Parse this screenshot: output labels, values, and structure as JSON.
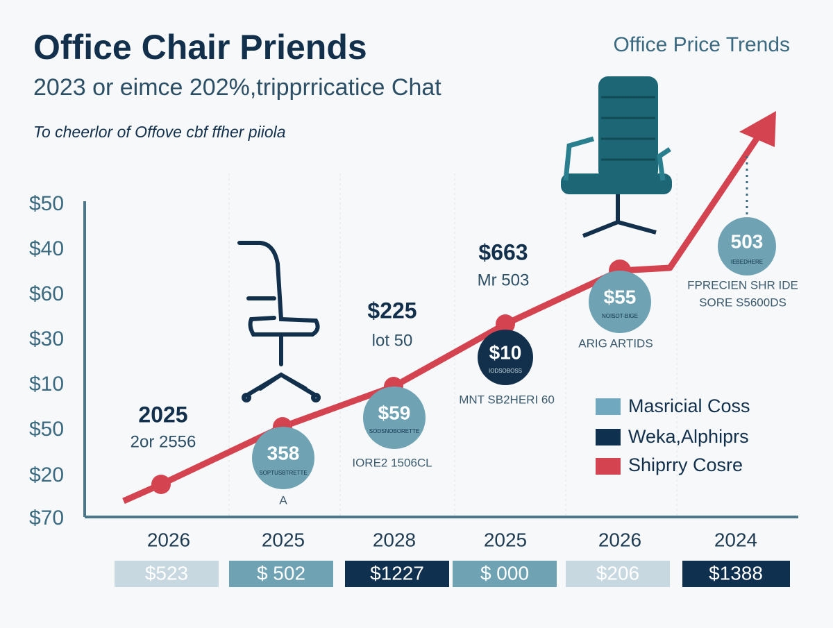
{
  "header": {
    "title": "Office Chair Priends",
    "subtitle": "2023 or eimce 202%,tripprricatice Chat",
    "tagline": "To cheerlor of Offove cbf ffher piiola",
    "corner": "Office Price Trends"
  },
  "axis": {
    "y_labels": [
      "$50",
      "$40",
      "$60",
      "$30",
      "$10",
      "$50",
      "$20",
      "$70"
    ],
    "x_labels": [
      "2026",
      "2025",
      "2028",
      "2025",
      "2026",
      "2024"
    ]
  },
  "callouts": [
    {
      "big": "2025",
      "small": "2or 2556"
    },
    {
      "big": "$225",
      "small": "lot 50"
    },
    {
      "big": "$663",
      "small": "Mr 503"
    }
  ],
  "bubbles": [
    {
      "value": "358",
      "caption": "SOPTUSBTRETTE"
    },
    {
      "value": "$59",
      "caption": "SODSNOBORETTE"
    },
    {
      "value": "$10",
      "caption": "IODSOBOSS"
    },
    {
      "value": "$55",
      "caption": "NOISOT-BIGE"
    },
    {
      "value": "503",
      "caption": "IEBEDHERE"
    }
  ],
  "notes": [
    "IORE2 1506CL",
    "A",
    "MNT SB2HERI 60",
    "ARIG ARTIDS",
    "FPRECIEN SHR IDE",
    "SORE S5600DS"
  ],
  "legend": [
    "Masricial Coss",
    "Weka,Alphiprs",
    "Shiprry Cosre"
  ],
  "boxes": [
    "$523",
    "$ 502",
    "$1227",
    "$ 000",
    "$206",
    "$1388"
  ]
}
